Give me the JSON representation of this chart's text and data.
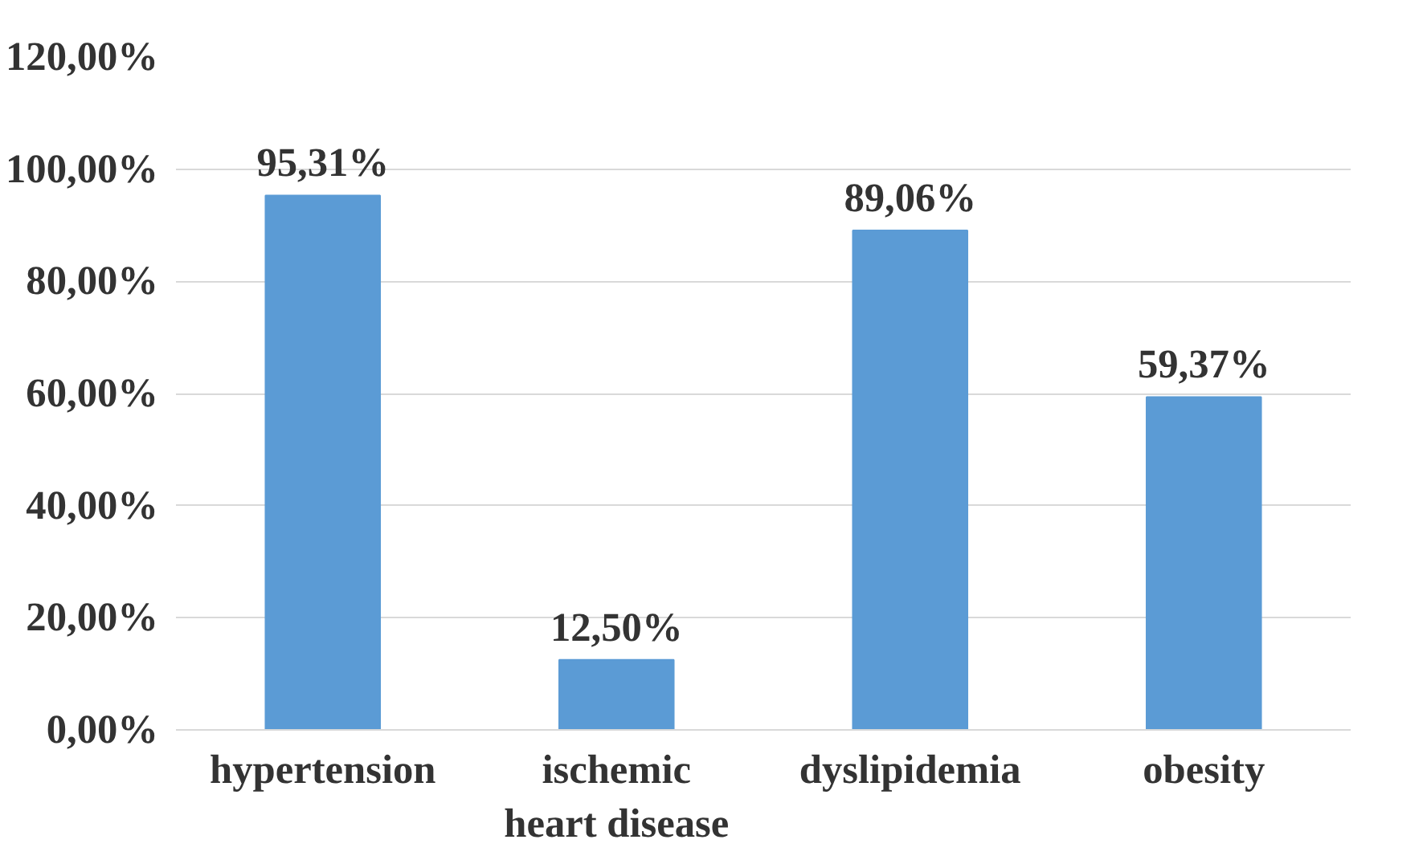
{
  "chart_data": {
    "type": "bar",
    "categories": [
      "hypertension",
      "ischemic heart disease",
      "dyslipidemia",
      "obesity"
    ],
    "values": [
      95.31,
      12.5,
      89.06,
      59.37
    ],
    "value_labels": [
      "95,31%",
      "12,50%",
      "89,06%",
      "59,37%"
    ],
    "color": "#5b9bd5",
    "ylim": [
      0,
      120
    ],
    "yticks": [
      {
        "value": 0,
        "label": "0,00%"
      },
      {
        "value": 20,
        "label": "20,00%"
      },
      {
        "value": 40,
        "label": "40,00%"
      },
      {
        "value": 60,
        "label": "60,00%"
      },
      {
        "value": 80,
        "label": "80,00%"
      },
      {
        "value": 100,
        "label": "100,00%"
      },
      {
        "value": 120,
        "label": "120,00%"
      }
    ],
    "grid": "y"
  }
}
